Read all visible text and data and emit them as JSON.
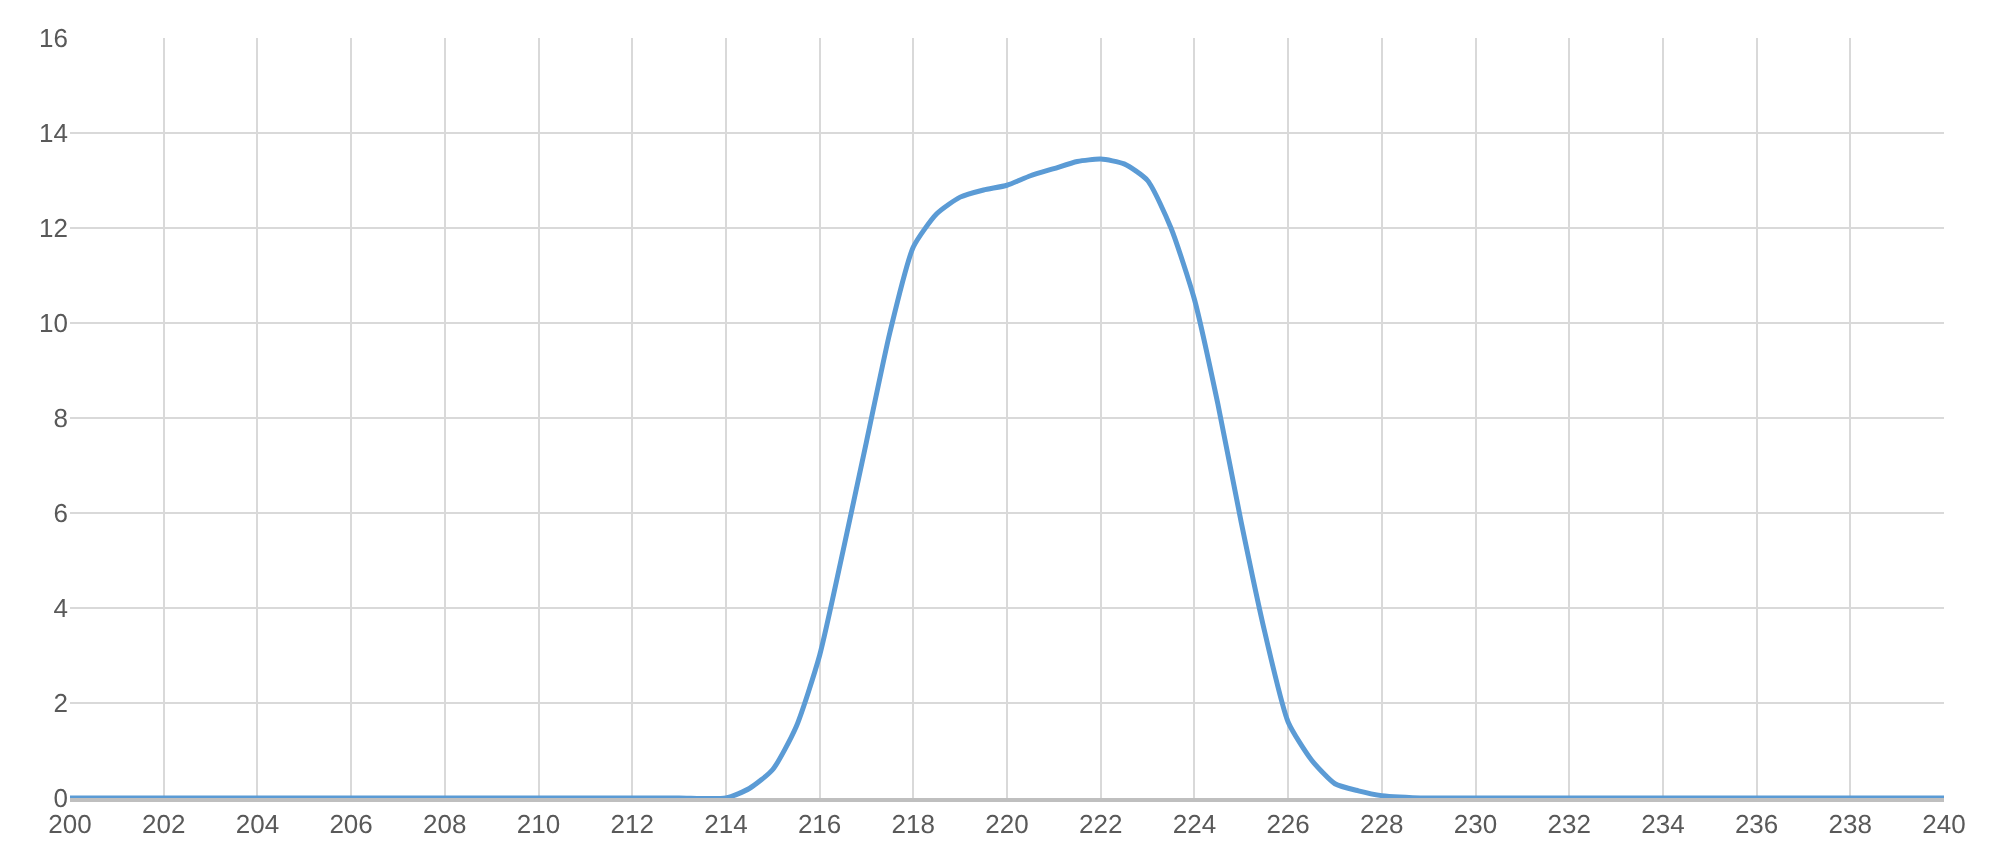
{
  "chart_data": {
    "type": "line",
    "x": [
      200,
      202,
      204,
      206,
      208,
      210,
      212,
      213,
      214,
      214.5,
      215,
      215.5,
      216,
      216.5,
      217,
      217.5,
      218,
      218.5,
      219,
      219.5,
      220,
      220.5,
      221,
      221.5,
      222,
      222.5,
      223,
      223.5,
      224,
      224.5,
      225,
      225.5,
      226,
      226.5,
      227,
      227.5,
      228,
      229,
      230,
      232,
      234,
      236,
      238,
      240
    ],
    "series": [
      {
        "color": "#5b9bd5",
        "values": [
          0,
          0,
          0,
          0,
          0,
          0,
          0,
          0,
          0,
          0.2,
          0.6,
          1.5,
          3.0,
          5.2,
          7.5,
          9.8,
          11.6,
          12.3,
          12.65,
          12.8,
          12.9,
          13.1,
          13.25,
          13.4,
          13.45,
          13.35,
          13.0,
          12.0,
          10.5,
          8.3,
          5.8,
          3.5,
          1.6,
          0.8,
          0.3,
          0.15,
          0.05,
          0,
          0,
          0,
          0,
          0,
          0,
          0
        ]
      }
    ],
    "xlim": [
      200,
      240
    ],
    "xticks": [
      200,
      202,
      204,
      206,
      208,
      210,
      212,
      214,
      216,
      218,
      220,
      222,
      224,
      226,
      228,
      230,
      232,
      234,
      236,
      238,
      240
    ],
    "ylim": [
      0,
      16
    ],
    "yticks": [
      0,
      2,
      4,
      6,
      8,
      10,
      12,
      14,
      16
    ],
    "grid": true,
    "legend": false,
    "marker": "none",
    "line_style": "solid"
  }
}
